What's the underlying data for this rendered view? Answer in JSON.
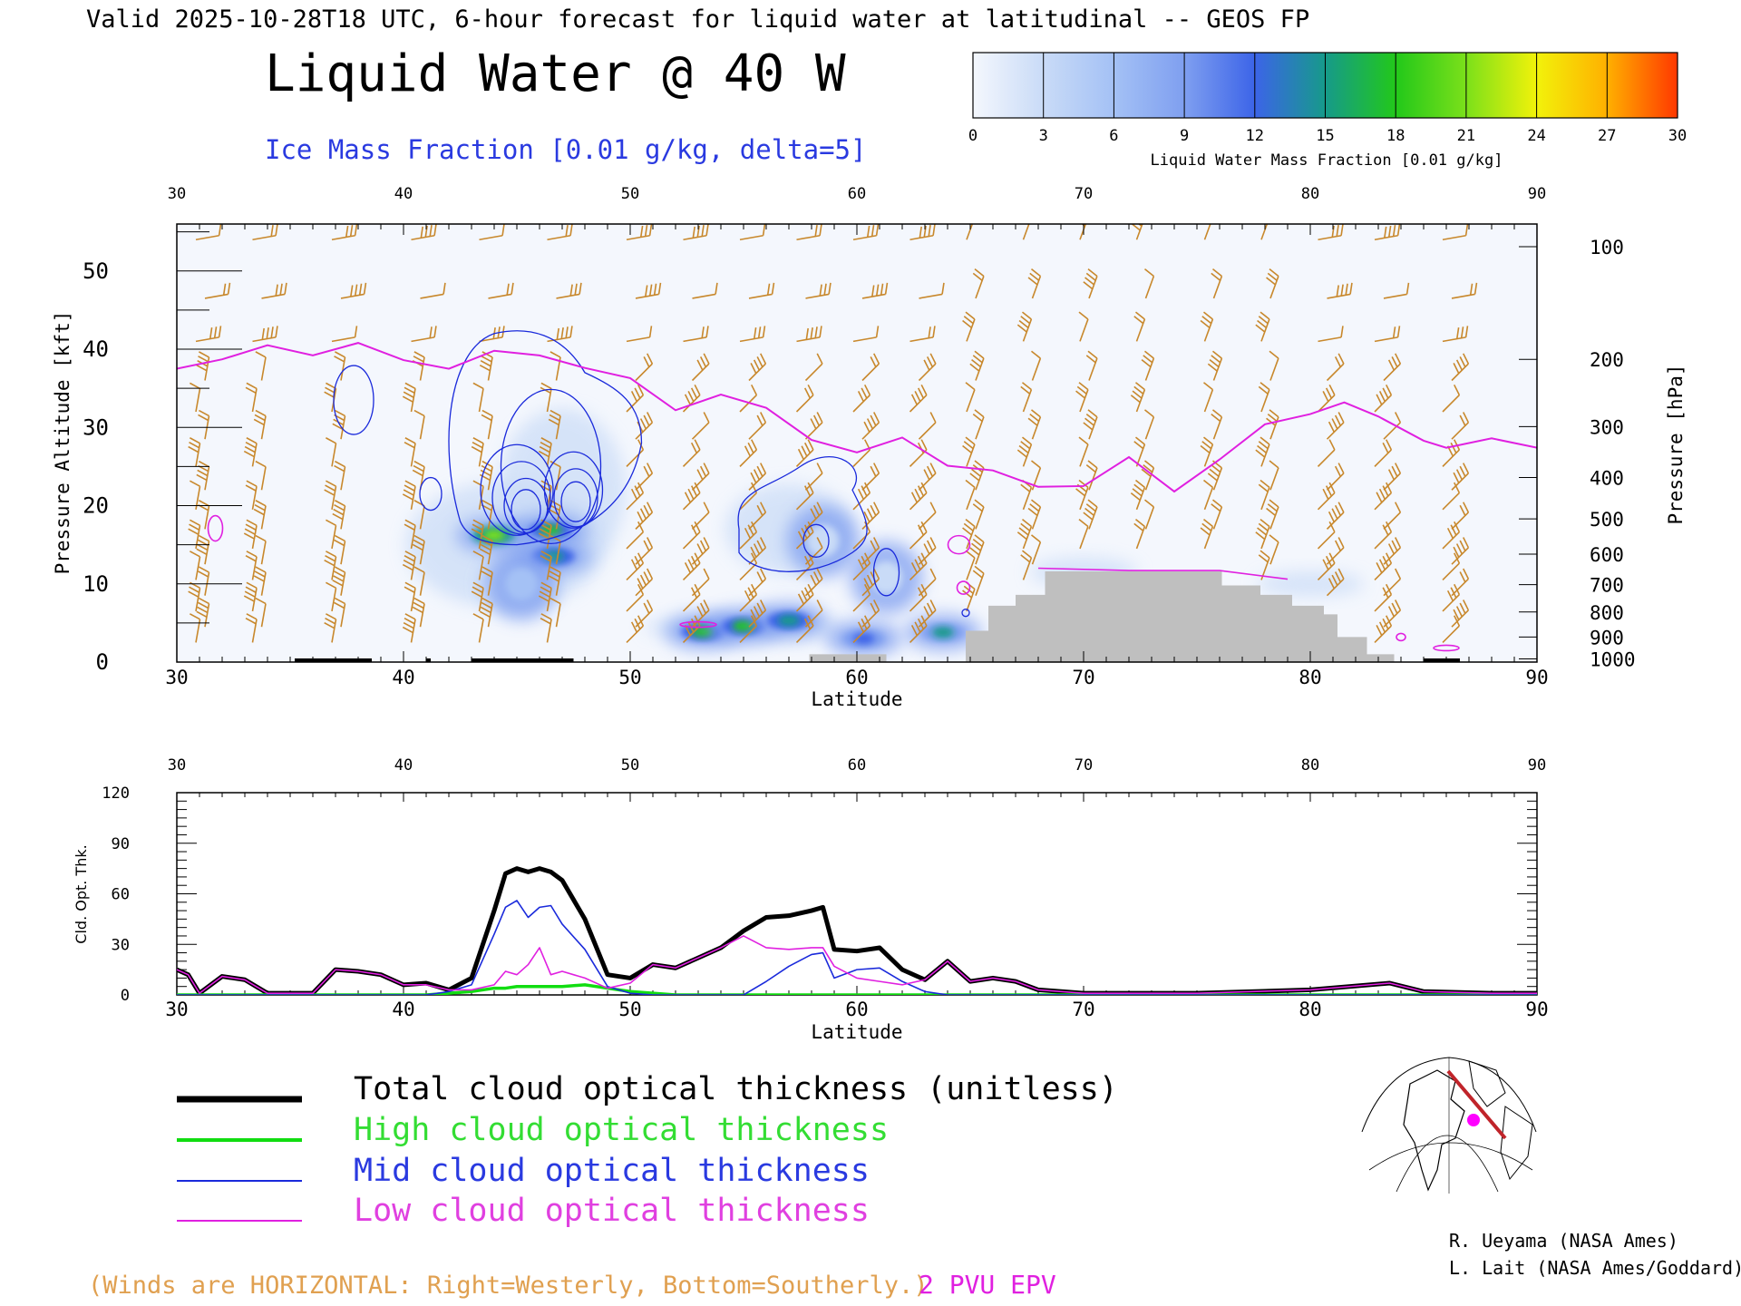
{
  "header": {
    "valid_line": "Valid 2025-10-28T18 UTC, 6-hour forecast for liquid water at latitudinal -- GEOS FP",
    "title": "Liquid Water @ 40 W",
    "subtitle": "Ice Mass Fraction [0.01 g/kg, delta=5]"
  },
  "colorbar": {
    "label": "Liquid Water Mass Fraction [0.01 g/kg]",
    "ticks": [
      "0",
      "3",
      "6",
      "9",
      "12",
      "15",
      "18",
      "21",
      "24",
      "27",
      "30"
    ],
    "colors": [
      "#f4f7fd",
      "#c9dbf7",
      "#a4c1f5",
      "#7f9ff0",
      "#3c64e8",
      "#169a8a",
      "#22c81a",
      "#7be01a",
      "#f2f20a",
      "#ffb000",
      "#ff3800"
    ]
  },
  "colors": {
    "epv": "#e020e0",
    "ice_contour": "#1a2adb",
    "wind": "#c8882c",
    "terrain": "#bfbfbf",
    "total": "#000000",
    "high": "#11dd11",
    "mid": "#1a2adb",
    "low": "#e020e0"
  },
  "chart_data": [
    {
      "type": "heatmap",
      "title": "Liquid Water @ 40 W",
      "xlabel": "Latitude",
      "ylabel": "Pressure Altitude [kft]",
      "ylabel_right": "Pressure [hPa]",
      "xlim": [
        30,
        90
      ],
      "ylim": [
        0,
        56
      ],
      "x_ticks": [
        "30",
        "40",
        "50",
        "60",
        "70",
        "80",
        "90"
      ],
      "y_ticks": [
        "0",
        "10",
        "20",
        "30",
        "40",
        "50"
      ],
      "pressure_ticks": [
        {
          "hPa": "100",
          "kft": 53.1
        },
        {
          "hPa": "200",
          "kft": 38.7
        },
        {
          "hPa": "300",
          "kft": 30.1
        },
        {
          "hPa": "400",
          "kft": 23.6
        },
        {
          "hPa": "500",
          "kft": 18.3
        },
        {
          "hPa": "600",
          "kft": 13.8
        },
        {
          "hPa": "700",
          "kft": 9.9
        },
        {
          "hPa": "800",
          "kft": 6.4
        },
        {
          "hPa": "900",
          "kft": 3.2
        },
        {
          "hPa": "1000",
          "kft": 0.4
        }
      ],
      "epv_2pvu_kft": [
        [
          30,
          37.5
        ],
        [
          32,
          38.7
        ],
        [
          34,
          40.5
        ],
        [
          36,
          39.2
        ],
        [
          38,
          40.8
        ],
        [
          40,
          38.6
        ],
        [
          42,
          37.5
        ],
        [
          44,
          39.8
        ],
        [
          46,
          39.2
        ],
        [
          48,
          37.6
        ],
        [
          50,
          36.3
        ],
        [
          52,
          32.2
        ],
        [
          54,
          34.2
        ],
        [
          56,
          32.5
        ],
        [
          58,
          28.4
        ],
        [
          60,
          26.8
        ],
        [
          62,
          28.7
        ],
        [
          64,
          25.1
        ],
        [
          66,
          24.5
        ],
        [
          68,
          22.4
        ],
        [
          70,
          22.5
        ],
        [
          72,
          26.2
        ],
        [
          74,
          21.8
        ],
        [
          76,
          25.9
        ],
        [
          78,
          30.4
        ],
        [
          80,
          31.7
        ],
        [
          81.5,
          33.2
        ],
        [
          83,
          31.4
        ],
        [
          85,
          28.3
        ],
        [
          86,
          27.4
        ],
        [
          88,
          28.6
        ],
        [
          90,
          27.4
        ]
      ],
      "liquid_water_blobs": [
        {
          "lat": 44.0,
          "kft": 16.2,
          "value": 20
        },
        {
          "lat": 46.5,
          "kft": 16.8,
          "value": 18
        },
        {
          "lat": 46.6,
          "kft": 13.5,
          "value": 16
        },
        {
          "lat": 45.2,
          "kft": 10.0,
          "value": 8
        },
        {
          "lat": 53.2,
          "kft": 3.9,
          "value": 17
        },
        {
          "lat": 55.0,
          "kft": 4.6,
          "value": 19
        },
        {
          "lat": 57.0,
          "kft": 5.3,
          "value": 15
        },
        {
          "lat": 60.3,
          "kft": 3.0,
          "value": 13
        },
        {
          "lat": 63.8,
          "kft": 3.8,
          "value": 14
        },
        {
          "lat": 58.5,
          "kft": 15.5,
          "value": 5
        },
        {
          "lat": 61.3,
          "kft": 10.8,
          "value": 4
        }
      ],
      "terrain_kft": [
        [
          64.8,
          0
        ],
        [
          64.8,
          4
        ],
        [
          65.8,
          4
        ],
        [
          65.8,
          7.2
        ],
        [
          67,
          7.2
        ],
        [
          67,
          8.6
        ],
        [
          68.3,
          8.6
        ],
        [
          68.3,
          11.6
        ],
        [
          76.1,
          11.6
        ],
        [
          76.1,
          9.8
        ],
        [
          77.8,
          9.8
        ],
        [
          77.8,
          8.6
        ],
        [
          79.2,
          8.6
        ],
        [
          79.2,
          7.2
        ],
        [
          80.6,
          7.2
        ],
        [
          80.6,
          6.1
        ],
        [
          81.2,
          6.1
        ],
        [
          81.2,
          3.2
        ],
        [
          82.5,
          3.2
        ],
        [
          82.5,
          1.0
        ],
        [
          83.7,
          1.0
        ],
        [
          83.7,
          0
        ]
      ]
    },
    {
      "type": "line",
      "xlabel": "Latitude",
      "ylabel": "Cld. Opt. Thk.",
      "xlim": [
        30,
        90
      ],
      "ylim": [
        0,
        120
      ],
      "x_ticks": [
        "30",
        "40",
        "50",
        "60",
        "70",
        "80",
        "90"
      ],
      "y_ticks": [
        "0",
        "30",
        "60",
        "90",
        "120"
      ],
      "x": [
        30,
        30.5,
        31,
        32,
        33,
        34,
        35,
        36,
        37,
        38,
        39,
        40,
        41,
        42,
        43,
        44,
        44.5,
        45,
        45.5,
        46,
        46.5,
        47,
        48,
        49,
        50,
        51,
        52,
        53,
        54,
        55,
        56,
        57,
        58,
        58.5,
        59,
        60,
        61,
        62,
        63,
        64,
        65,
        66,
        67,
        68,
        70,
        75,
        80,
        83.5,
        85,
        88,
        90
      ],
      "series": [
        {
          "name": "Total cloud optical thickness (unitless)",
          "values": [
            15,
            12,
            1,
            11,
            9,
            1,
            1,
            1,
            15,
            14,
            12,
            6,
            7,
            3,
            10,
            50,
            72,
            75,
            73,
            75,
            73,
            68,
            45,
            12,
            10,
            18,
            16,
            22,
            28,
            38,
            46,
            47,
            50,
            52,
            27,
            26,
            28,
            15,
            9,
            20,
            8,
            10,
            8,
            3,
            1,
            1,
            3,
            7,
            2,
            1,
            1
          ]
        },
        {
          "name": "High cloud optical thickness",
          "values": [
            0,
            0,
            0,
            0,
            0,
            0,
            0,
            0,
            0,
            0,
            0,
            0,
            0,
            1,
            2,
            4,
            4,
            5,
            5,
            5,
            5,
            5,
            6,
            4,
            2,
            1,
            0,
            0,
            0,
            0,
            0,
            0,
            0,
            0,
            0,
            0,
            0,
            0,
            0,
            0,
            0,
            0,
            0,
            0,
            0,
            0,
            0,
            0,
            0,
            0,
            0
          ]
        },
        {
          "name": "Mid cloud optical thickness",
          "values": [
            0,
            0,
            0,
            0,
            0,
            0,
            0,
            0,
            0,
            0,
            0,
            0,
            0,
            2,
            6,
            36,
            52,
            56,
            46,
            52,
            53,
            42,
            27,
            5,
            1,
            0,
            0,
            0,
            0,
            0,
            8,
            17,
            24,
            25,
            10,
            15,
            16,
            8,
            2,
            0,
            0,
            0,
            0,
            0,
            0,
            0,
            0,
            0,
            0,
            0,
            0
          ]
        },
        {
          "name": "Low cloud optical thickness",
          "values": [
            15,
            12,
            1,
            11,
            9,
            1,
            1,
            1,
            15,
            14,
            12,
            6,
            6,
            3,
            3,
            6,
            14,
            12,
            18,
            28,
            12,
            14,
            10,
            4,
            7,
            18,
            16,
            22,
            28,
            35,
            28,
            27,
            28,
            28,
            17,
            10,
            8,
            6,
            9,
            20,
            8,
            10,
            8,
            3,
            1,
            1,
            3,
            7,
            2,
            1,
            1
          ]
        }
      ]
    }
  ],
  "xlabel_top": "Latitude",
  "legend": {
    "total": "Total cloud optical thickness (unitless)",
    "high": "High cloud optical thickness",
    "mid": "Mid cloud optical thickness",
    "low": "Low cloud optical thickness"
  },
  "footer": {
    "winds_note": "(Winds are HORIZONTAL: Right=Westerly, Bottom=Southerly.)",
    "epv_label": "2 PVU EPV",
    "credit1": "R. Ueyama (NASA Ames)",
    "credit2": "L. Lait (NASA Ames/Goddard)"
  }
}
